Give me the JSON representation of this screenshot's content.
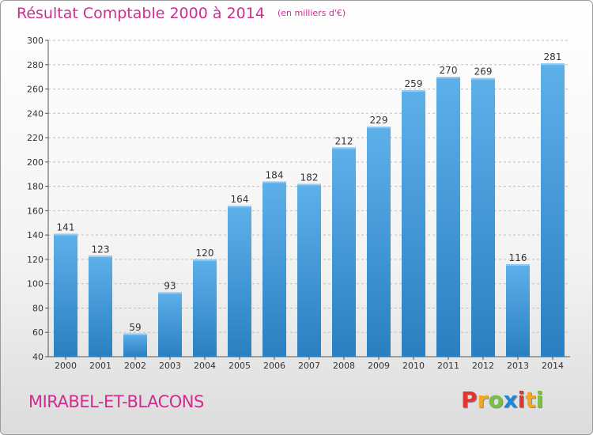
{
  "title": "Résultat Comptable 2000 à 2014",
  "subtitle": "(en milliers d'€)",
  "commune": "MIRABEL-ET-BLACONS",
  "logo": {
    "letters": [
      "P",
      "r",
      "o",
      "x",
      "i",
      "t",
      "i"
    ],
    "colors": [
      "#e3342f",
      "#f5a623",
      "#7ac143",
      "#1e88d4",
      "#e3342f",
      "#f5a623",
      "#7ac143"
    ]
  },
  "colors": {
    "bar": "#3d97d6",
    "bar_light": "#6bb6ec",
    "bar_dark": "#2376b8",
    "accent": "#cc2f8f"
  },
  "chart_data": {
    "type": "bar",
    "categories": [
      "2000",
      "2001",
      "2002",
      "2003",
      "2004",
      "2005",
      "2006",
      "2007",
      "2008",
      "2009",
      "2010",
      "2011",
      "2012",
      "2013",
      "2014"
    ],
    "values": [
      141,
      123,
      59,
      93,
      120,
      164,
      184,
      182,
      212,
      229,
      259,
      270,
      269,
      116,
      281
    ],
    "title": "Résultat Comptable 2000 à 2014",
    "subtitle": "(en milliers d'€)",
    "ylim": [
      40,
      300
    ],
    "yticks": [
      40,
      60,
      80,
      100,
      120,
      140,
      160,
      180,
      200,
      220,
      240,
      260,
      280,
      300
    ],
    "grid": true
  }
}
